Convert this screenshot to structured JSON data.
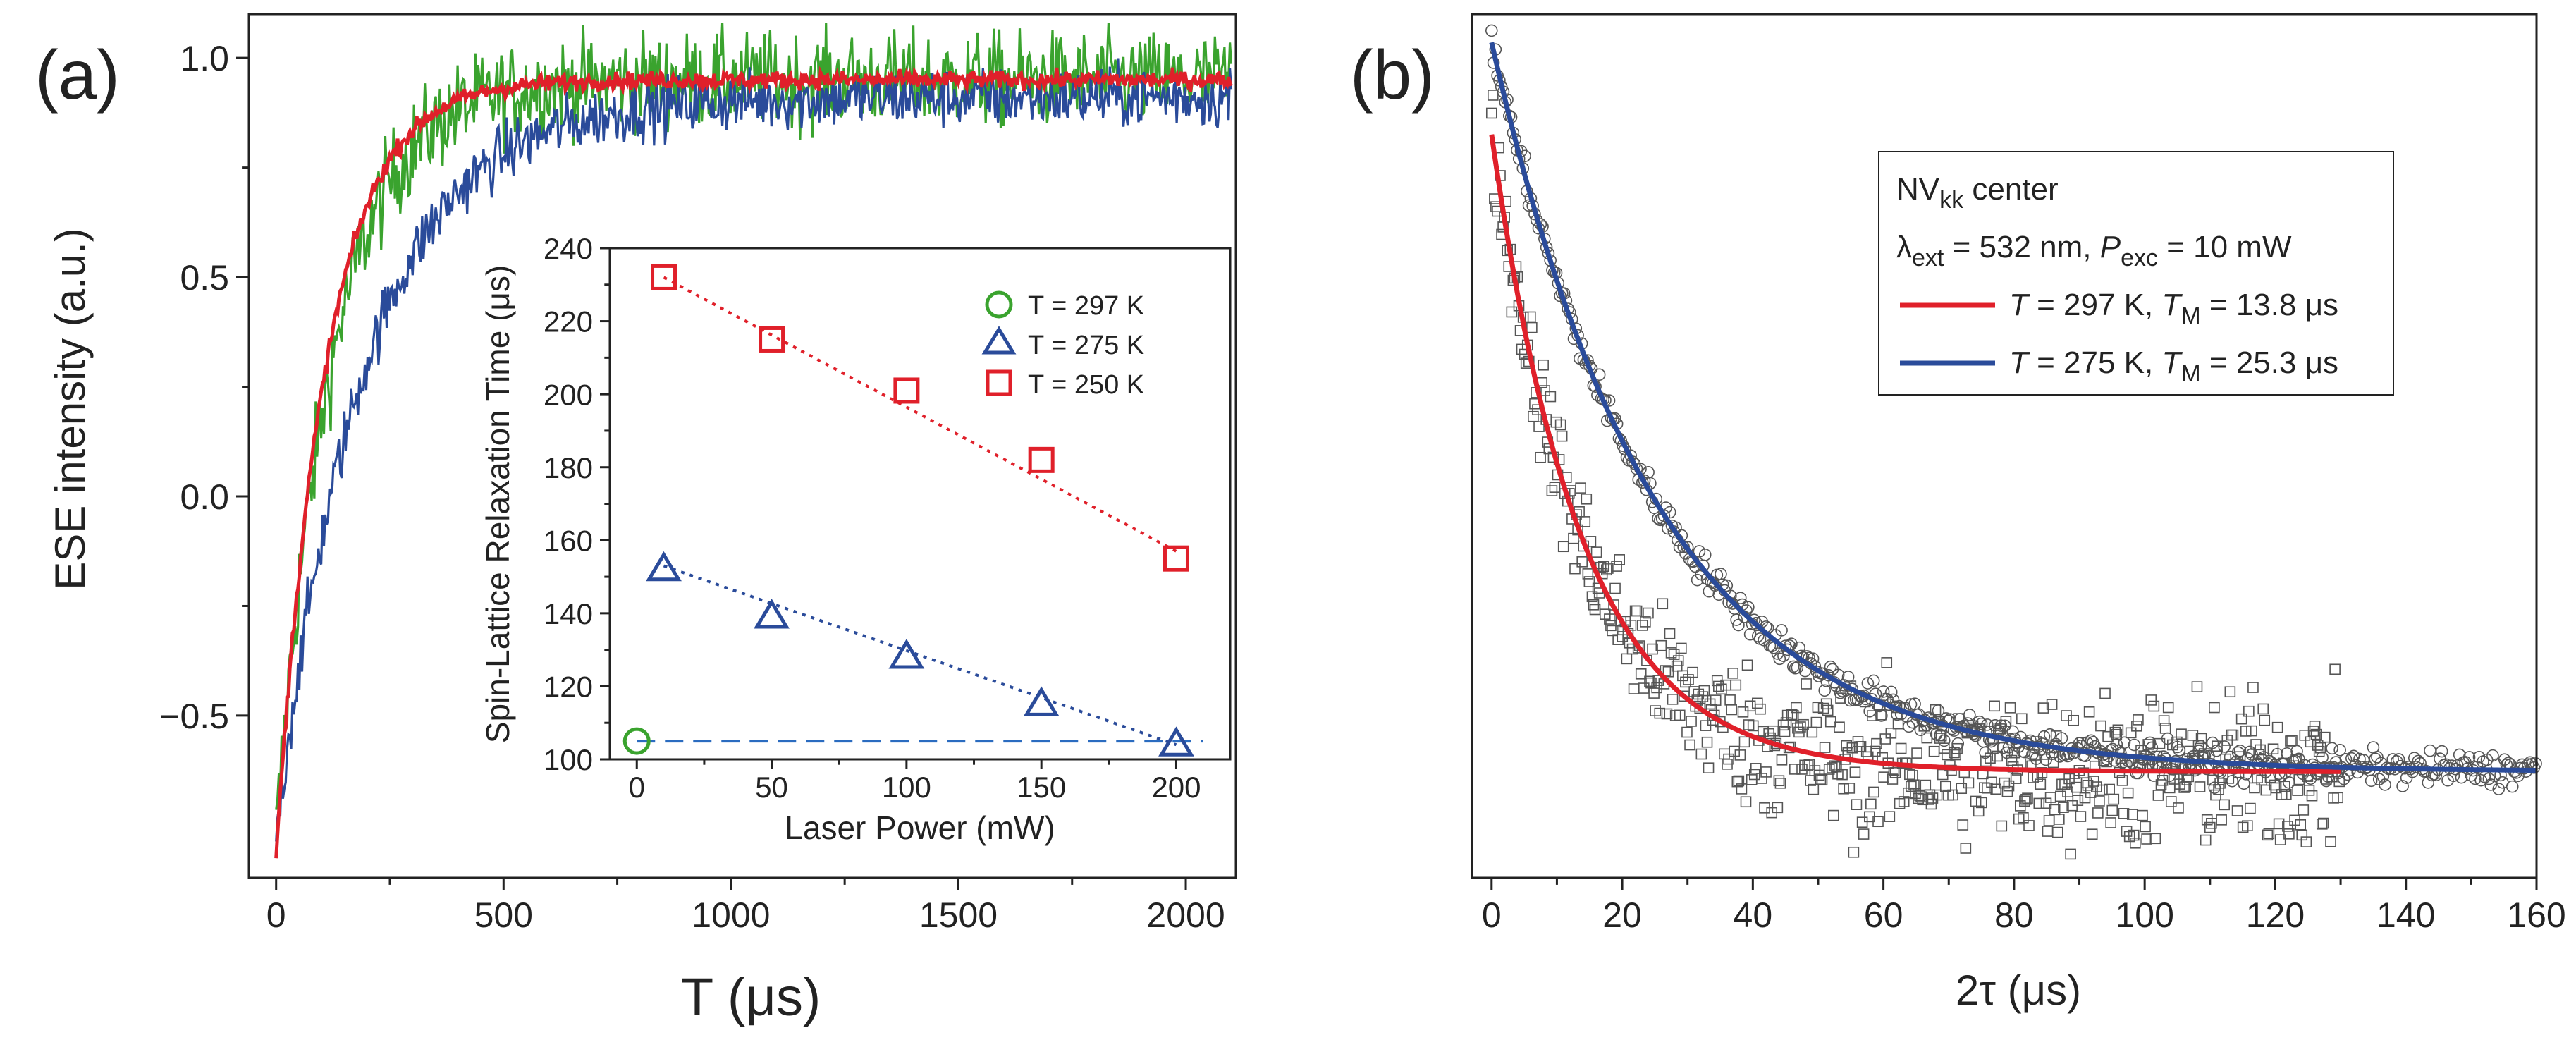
{
  "colors": {
    "green": "#3aa32e",
    "red": "#e0202a",
    "blue": "#2a4b9a",
    "grey": "#555555",
    "dashed": "#2b6cc0",
    "axis": "#222222"
  },
  "panel_a": {
    "label": "(a)",
    "xlabel": "T (μs)",
    "ylabel": "ESE intensity (a.u.)"
  },
  "inset": {
    "xlabel": "Laser Power (mW)",
    "ylabel": "Spin-Lattice Relaxation Time (μs)",
    "legend": [
      {
        "label": "T = 297 K",
        "marker": "circle",
        "color": "green"
      },
      {
        "label": "T = 275 K",
        "marker": "triangle",
        "color": "blue"
      },
      {
        "label": "T = 250 K",
        "marker": "square",
        "color": "red"
      }
    ]
  },
  "panel_b": {
    "label": "(b)",
    "xlabel": "2τ (μs)",
    "legend": {
      "title_main": "NV",
      "title_sub": "kk",
      "title_rest": " center",
      "cond": {
        "lambda": "λ",
        "lambda_sub": "ext",
        "lambda_val": " = 532 nm, ",
        "p": "P",
        "p_sub": "exc",
        "p_val": " = 10 mW"
      },
      "entries": [
        {
          "t": "T",
          "t_val": " = 297 K, ",
          "tm": "T",
          "tm_sub": "M",
          "tm_val": " = 13.8 μs",
          "color": "red"
        },
        {
          "t": "T",
          "t_val": " = 275 K, ",
          "tm": "T",
          "tm_sub": "M",
          "tm_val": " = 25.3 μs",
          "color": "blue"
        }
      ]
    }
  },
  "chart_data": [
    {
      "id": "a-main",
      "type": "line",
      "title": "",
      "xlabel": "T (μs)",
      "ylabel": "ESE intensity (a.u.)",
      "xlim": [
        -60,
        2110
      ],
      "ylim": [
        -0.87,
        1.1
      ],
      "xticks": [
        0,
        500,
        1000,
        1500,
        2000
      ],
      "xtick_labels": [
        "0",
        "500",
        "1000",
        "1500",
        "2000"
      ],
      "yticks": [
        -0.5,
        0.0,
        0.5,
        1.0
      ],
      "ytick_labels": [
        "−0.5",
        "0.0",
        "0.5",
        "1.0"
      ],
      "series": [
        {
          "name": "T = 297 K",
          "color": "green",
          "start": -0.77,
          "plateau": 0.95,
          "tau": 125,
          "noise": 0.055
        },
        {
          "name": "T = 275 K",
          "color": "blue",
          "start": -0.77,
          "plateau": 0.91,
          "tau": 195,
          "noise": 0.035
        },
        {
          "name": "T = 250 K",
          "color": "red",
          "start": -0.82,
          "plateau": 0.95,
          "tau": 110,
          "noise": 0.01
        }
      ]
    },
    {
      "id": "a-inset",
      "type": "scatter",
      "title": "",
      "xlabel": "Laser Power (mW)",
      "ylabel": "Spin-Lattice Relaxation Time (μs)",
      "xlim": [
        -10,
        220
      ],
      "ylim": [
        100,
        240
      ],
      "xticks": [
        0,
        50,
        100,
        150,
        200
      ],
      "xtick_labels": [
        "0",
        "50",
        "100",
        "150",
        "200"
      ],
      "yticks": [
        100,
        120,
        140,
        160,
        180,
        200,
        220,
        240
      ],
      "ytick_labels": [
        "100",
        "120",
        "140",
        "160",
        "180",
        "200",
        "220",
        "240"
      ],
      "series": [
        {
          "name": "T = 297 K",
          "marker": "circle",
          "color": "green",
          "x": [
            0
          ],
          "y": [
            105
          ]
        },
        {
          "name": "T = 275 K",
          "marker": "triangle",
          "color": "blue",
          "x": [
            10,
            50,
            100,
            150,
            200
          ],
          "y": [
            152,
            139,
            128,
            115,
            104
          ]
        },
        {
          "name": "T = 250 K",
          "marker": "square",
          "color": "red",
          "x": [
            10,
            50,
            100,
            150,
            200
          ],
          "y": [
            232,
            215,
            201,
            182,
            155
          ]
        }
      ],
      "fit_lines": [
        {
          "series": "T = 250 K",
          "color": "red",
          "style": "dotted",
          "x": [
            10,
            200
          ],
          "y": [
            232,
            157
          ]
        },
        {
          "series": "T = 275 K",
          "color": "blue",
          "style": "dotted",
          "x": [
            10,
            200
          ],
          "y": [
            153,
            104
          ]
        },
        {
          "series": "T = 297 K",
          "color": "dashed",
          "style": "dashed",
          "x": [
            0,
            210
          ],
          "y": [
            105,
            105
          ]
        }
      ]
    },
    {
      "id": "b-main",
      "type": "scatter",
      "title": "",
      "xlabel": "2τ (μs)",
      "ylabel": "",
      "xlim": [
        -3,
        160
      ],
      "ylim": [
        -0.12,
        1.1
      ],
      "xticks": [
        0,
        20,
        40,
        60,
        80,
        100,
        120,
        140,
        160
      ],
      "xtick_labels": [
        "0",
        "20",
        "40",
        "60",
        "80",
        "100",
        "120",
        "140",
        "160"
      ],
      "series": [
        {
          "name": "T = 297 K data",
          "marker": "square",
          "color": "grey",
          "x_range": [
            0,
            130
          ],
          "amp": 0.9,
          "baseline": 0.03,
          "tau": 13.8,
          "noise": 0.035
        },
        {
          "name": "T = 275 K data",
          "marker": "circle",
          "color": "grey",
          "x_range": [
            0,
            160
          ],
          "amp": 1.03,
          "baseline": 0.03,
          "tau": 25.3,
          "noise": 0.012
        },
        {
          "name": "T = 297 K, T_M = 13.8 μs",
          "type": "line",
          "color": "red",
          "x_range": [
            0,
            130
          ],
          "amp": 0.9,
          "baseline": 0.03,
          "tau": 13.8
        },
        {
          "name": "T = 275 K, T_M = 25.3 μs",
          "type": "line",
          "color": "blue",
          "x_range": [
            0,
            160
          ],
          "amp": 1.03,
          "baseline": 0.03,
          "tau": 25.3
        }
      ]
    }
  ]
}
